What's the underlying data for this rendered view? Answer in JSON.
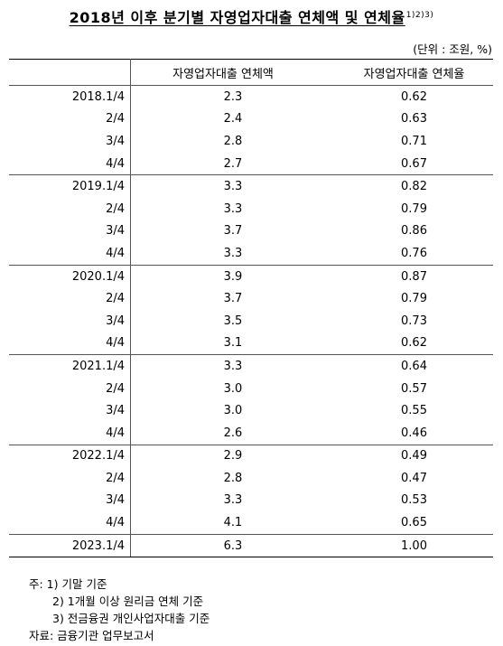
{
  "title": "2018년 이후 분기별 자영업자대출 연체액 및 연체율",
  "title_footnote_marks": "1)2)3)",
  "unit": "(단위 : 조원, %)",
  "columns": [
    "자영업자대출 연체액",
    "자영업자대출 연체율"
  ],
  "rows": [
    {
      "period": "2018.1/4",
      "amount": "2.3",
      "rate": "0.62"
    },
    {
      "period": "2/4",
      "amount": "2.4",
      "rate": "0.63"
    },
    {
      "period": "3/4",
      "amount": "2.8",
      "rate": "0.71"
    },
    {
      "period": "4/4",
      "amount": "2.7",
      "rate": "0.67"
    },
    {
      "period": "2019.1/4",
      "amount": "3.3",
      "rate": "0.82"
    },
    {
      "period": "2/4",
      "amount": "3.3",
      "rate": "0.79"
    },
    {
      "period": "3/4",
      "amount": "3.7",
      "rate": "0.86"
    },
    {
      "period": "4/4",
      "amount": "3.3",
      "rate": "0.76"
    },
    {
      "period": "2020.1/4",
      "amount": "3.9",
      "rate": "0.87"
    },
    {
      "period": "2/4",
      "amount": "3.7",
      "rate": "0.79"
    },
    {
      "period": "3/4",
      "amount": "3.5",
      "rate": "0.73"
    },
    {
      "period": "4/4",
      "amount": "3.1",
      "rate": "0.62"
    },
    {
      "period": "2021.1/4",
      "amount": "3.3",
      "rate": "0.64"
    },
    {
      "period": "2/4",
      "amount": "3.0",
      "rate": "0.57"
    },
    {
      "period": "3/4",
      "amount": "3.0",
      "rate": "0.55"
    },
    {
      "period": "4/4",
      "amount": "2.6",
      "rate": "0.46"
    },
    {
      "period": "2022.1/4",
      "amount": "2.9",
      "rate": "0.49"
    },
    {
      "period": "2/4",
      "amount": "2.8",
      "rate": "0.47"
    },
    {
      "period": "3/4",
      "amount": "3.3",
      "rate": "0.53"
    },
    {
      "period": "4/4",
      "amount": "4.1",
      "rate": "0.65"
    },
    {
      "period": "2023.1/4",
      "amount": "6.3",
      "rate": "1.00"
    }
  ],
  "notes": [
    "주: 1) 기말 기준",
    "2) 1개월 이상 원리금 연체 기준",
    "3) 전금융권 개인사업자대출 기준"
  ],
  "source": "자료: 금융기관 업무보고서"
}
